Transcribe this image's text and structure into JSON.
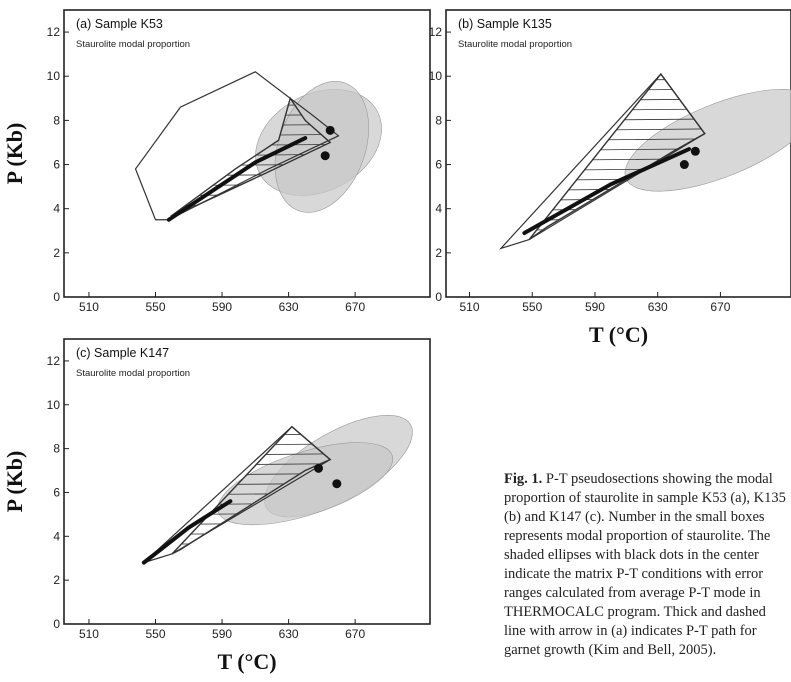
{
  "ylabel": "P (Kb)",
  "xlabel": "T (°C)",
  "caption": {
    "lead": "Fig. 1.",
    "text": "P-T pseudosections showing the modal proportion of staurolite in sample K53 (a), K135 (b) and K147 (c). Number in the small boxes represents modal proportion of staurolite. The shaded ellipses with black dots in the center indicate the matrix P-T conditions with error ranges calculated from average P-T mode in THERMOCALC program. Thick and dashed line with arrow in (a) indicates P-T path for garnet growth (Kim and Bell, 2005)."
  },
  "colors": {
    "field": "#333333",
    "ellipse": "#c8c8c8",
    "dot": "#111111"
  },
  "chart_data": [
    {
      "type": "scatter",
      "title": "(a) Sample K53",
      "subtitle": "Staurolite modal proportion",
      "xlabel": "",
      "ylabel": "P (Kb)",
      "xlim": [
        495,
        715
      ],
      "ylim": [
        0,
        13
      ],
      "xticks": [
        510,
        550,
        590,
        630,
        670
      ],
      "yticks": [
        0,
        2,
        4,
        6,
        8,
        10,
        12
      ],
      "points": [
        {
          "x": 655,
          "y": 7.55
        },
        {
          "x": 652,
          "y": 6.4
        }
      ],
      "outer_field": [
        [
          550,
          3.5
        ],
        [
          538,
          5.8
        ],
        [
          565,
          8.6
        ],
        [
          610,
          10.2
        ],
        [
          645,
          8.2
        ],
        [
          660,
          7.3
        ],
        [
          618,
          5.8
        ],
        [
          558,
          3.5
        ]
      ],
      "staurolite_field": [
        [
          560,
          3.7
        ],
        [
          598,
          5.8
        ],
        [
          624,
          7.1
        ],
        [
          631,
          9.0
        ],
        [
          640,
          8.0
        ],
        [
          655,
          7.0
        ],
        [
          616,
          5.6
        ],
        [
          562,
          3.7
        ]
      ],
      "thick_path": [
        [
          558,
          3.5
        ],
        [
          580,
          4.6
        ],
        [
          610,
          6.1
        ],
        [
          640,
          7.2
        ]
      ],
      "ellipses": [
        {
          "cx": 648,
          "cy": 7.0,
          "rx": 40,
          "ry": 1.0,
          "angle": 28
        },
        {
          "cx": 650,
          "cy": 6.8,
          "rx": 26,
          "ry": 1.4,
          "angle": -20
        }
      ]
    },
    {
      "type": "scatter",
      "title": "(b) Sample K135",
      "subtitle": "Staurolite modal proportion",
      "xlabel": "T (°C)",
      "ylabel": "",
      "xlim": [
        495,
        715
      ],
      "ylim": [
        0,
        13
      ],
      "xticks": [
        510,
        550,
        590,
        630,
        670
      ],
      "yticks": [
        0,
        2,
        4,
        6,
        8,
        10,
        12
      ],
      "points": [
        {
          "x": 647,
          "y": 6.0
        },
        {
          "x": 654,
          "y": 6.6
        }
      ],
      "outer_field": [
        [
          530,
          2.2
        ],
        [
          632,
          10.1
        ],
        [
          660,
          7.4
        ],
        [
          548,
          2.6
        ]
      ],
      "staurolite_field": [
        [
          548,
          2.6
        ],
        [
          632,
          10.1
        ],
        [
          660,
          7.4
        ],
        [
          640,
          6.6
        ],
        [
          560,
          3.2
        ]
      ],
      "thick_path": [
        [
          545,
          2.9
        ],
        [
          600,
          5.1
        ],
        [
          650,
          6.7
        ]
      ],
      "ellipses": [
        {
          "cx": 670,
          "cy": 7.1,
          "rx": 65,
          "ry": 0.75,
          "angle": 22
        }
      ]
    },
    {
      "type": "scatter",
      "title": "(c) Sample K147",
      "subtitle": "Staurolite modal proportion",
      "xlabel": "T (°C)",
      "ylabel": "P (Kb)",
      "xlim": [
        495,
        715
      ],
      "ylim": [
        0,
        13
      ],
      "xticks": [
        510,
        550,
        590,
        630,
        670
      ],
      "yticks": [
        0,
        2,
        4,
        6,
        8,
        10,
        12
      ],
      "points": [
        {
          "x": 648,
          "y": 7.1
        },
        {
          "x": 659,
          "y": 6.4
        }
      ],
      "outer_field": [
        [
          543,
          2.8
        ],
        [
          632,
          9.0
        ],
        [
          655,
          7.5
        ],
        [
          560,
          3.2
        ]
      ],
      "staurolite_field": [
        [
          560,
          3.2
        ],
        [
          632,
          9.0
        ],
        [
          655,
          7.5
        ],
        [
          640,
          7.0
        ],
        [
          565,
          3.4
        ]
      ],
      "thick_path": [
        [
          543,
          2.8
        ],
        [
          570,
          4.4
        ],
        [
          595,
          5.6
        ]
      ],
      "ellipses": [
        {
          "cx": 660,
          "cy": 7.2,
          "rx": 50,
          "ry": 0.7,
          "angle": 30
        },
        {
          "cx": 640,
          "cy": 6.4,
          "rx": 55,
          "ry": 0.65,
          "angle": 18
        }
      ]
    }
  ]
}
